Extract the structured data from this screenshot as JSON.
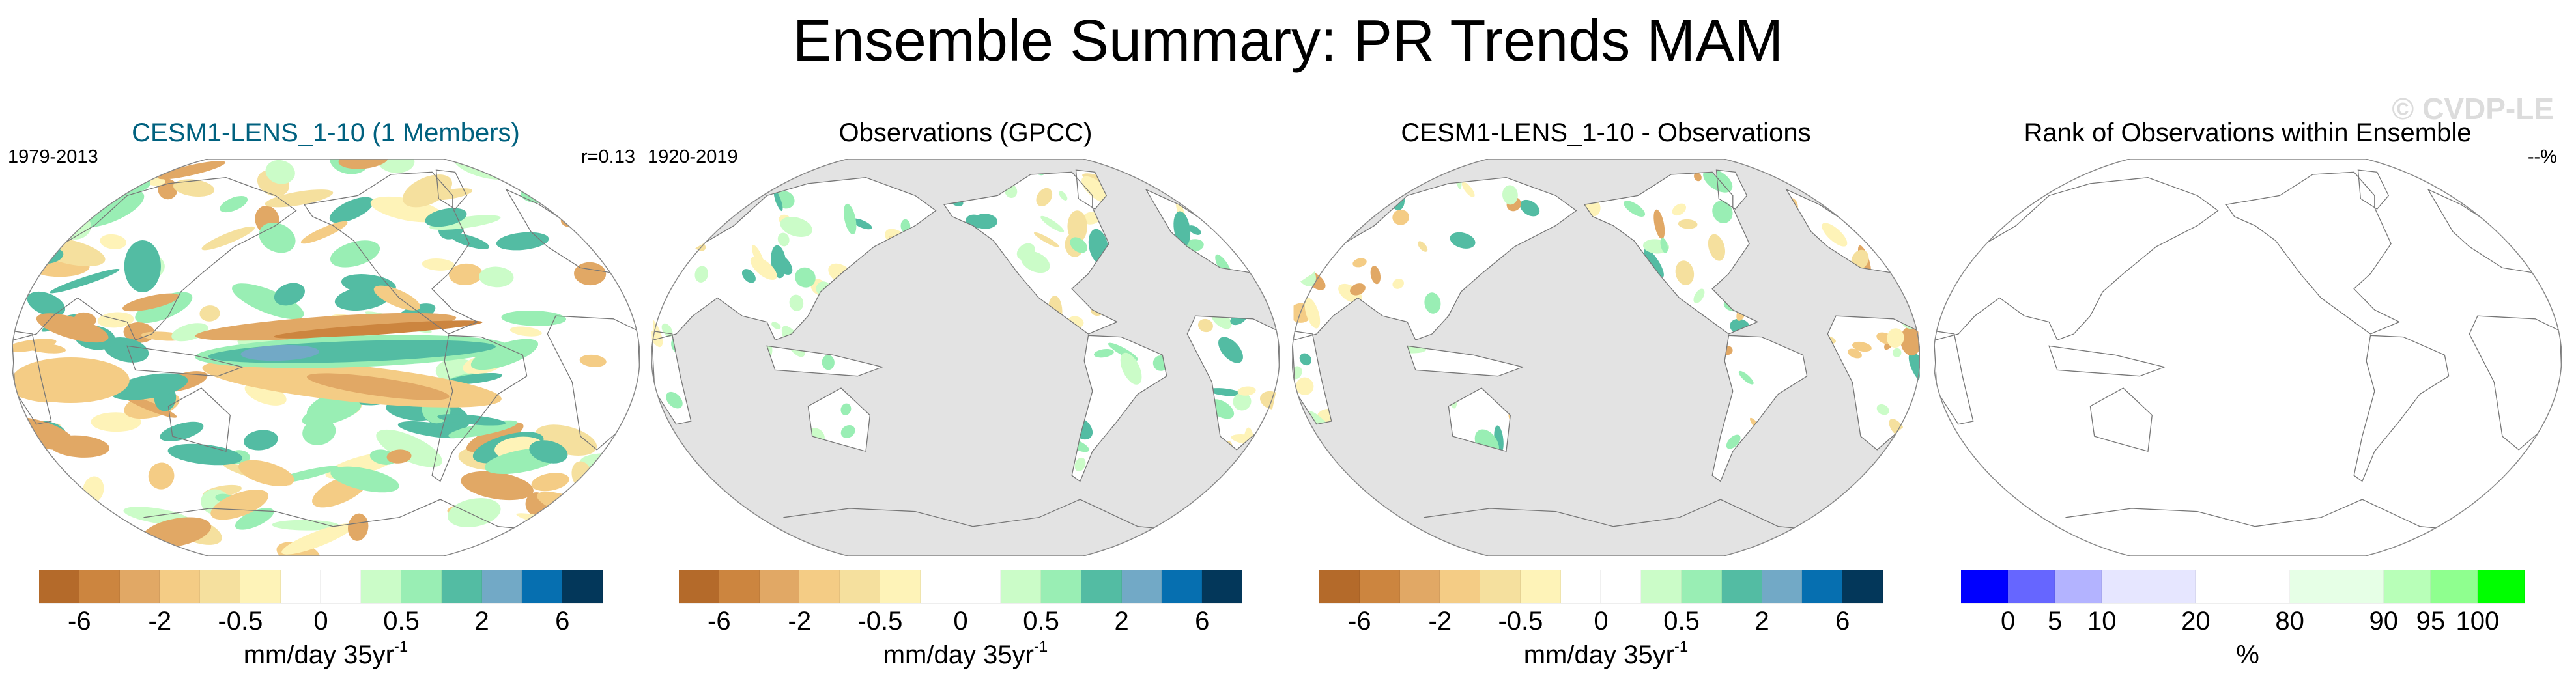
{
  "title": "Ensemble Summary: PR Trends MAM",
  "watermark": "© CVDP-LE",
  "panels": [
    {
      "title": "CESM1-LENS_1-10 (1 Members)",
      "title_color": "#00617f",
      "left_label": "1979-2013",
      "right_label": "r=0.13",
      "map_style": "model",
      "colorbar": {
        "ticks": [
          "-6",
          "-2",
          "-0.5",
          "0",
          "0.5",
          "2",
          "6"
        ],
        "unit": "mm/day 35yr",
        "unit_sup": "-1",
        "colors": [
          "#b46a2a",
          "#cc853f",
          "#e1a865",
          "#f4cc85",
          "#f5e09e",
          "#fef3b8",
          "#ffffff",
          "#ffffff",
          "#cbfcc8",
          "#99eeb4",
          "#53bca3",
          "#72a9c6",
          "#066fb0",
          "#03375a"
        ]
      }
    },
    {
      "title": "Observations (GPCC)",
      "title_color": "#000000",
      "left_label": "1920-2019",
      "right_label": "",
      "map_style": "obs",
      "colorbar": {
        "ticks": [
          "-6",
          "-2",
          "-0.5",
          "0",
          "0.5",
          "2",
          "6"
        ],
        "unit": "mm/day 35yr",
        "unit_sup": "-1",
        "colors": [
          "#b46a2a",
          "#cc853f",
          "#e1a865",
          "#f4cc85",
          "#f5e09e",
          "#fef3b8",
          "#ffffff",
          "#ffffff",
          "#cbfcc8",
          "#99eeb4",
          "#53bca3",
          "#72a9c6",
          "#066fb0",
          "#03375a"
        ]
      }
    },
    {
      "title": "CESM1-LENS_1-10 - Observations",
      "title_color": "#000000",
      "left_label": "",
      "right_label": "",
      "map_style": "diff",
      "colorbar": {
        "ticks": [
          "-6",
          "-2",
          "-0.5",
          "0",
          "0.5",
          "2",
          "6"
        ],
        "unit": "mm/day 35yr",
        "unit_sup": "-1",
        "colors": [
          "#b46a2a",
          "#cc853f",
          "#e1a865",
          "#f4cc85",
          "#f5e09e",
          "#fef3b8",
          "#ffffff",
          "#ffffff",
          "#cbfcc8",
          "#99eeb4",
          "#53bca3",
          "#72a9c6",
          "#066fb0",
          "#03375a"
        ]
      }
    },
    {
      "title": "Rank of Observations within Ensemble",
      "title_color": "#000000",
      "left_label": "",
      "right_label": "--%",
      "map_style": "rank",
      "colorbar": {
        "ticks": [
          "0",
          "5",
          "10",
          "20",
          "80",
          "90",
          "95",
          "100"
        ],
        "unit": "%",
        "unit_sup": "",
        "colors": [
          "#0000ff",
          "#6666ff",
          "#b3b3ff",
          "#e6e6ff",
          "#ffffff",
          "#e6ffe6",
          "#b8ffb8",
          "#8fff8f",
          "#00ff00"
        ]
      }
    }
  ],
  "chart_data": {
    "type": "heatmap",
    "title": "Ensemble Summary: PR Trends MAM",
    "maps": [
      {
        "title": "CESM1-LENS_1-10 (1 Members)",
        "period": "1979-2013",
        "pattern_correlation": 0.13,
        "units": "mm/day 35yr-1"
      },
      {
        "title": "Observations (GPCC)",
        "period": "1920-2019",
        "units": "mm/day 35yr-1"
      },
      {
        "title": "CESM1-LENS_1-10 - Observations",
        "units": "mm/day 35yr-1"
      },
      {
        "title": "Rank of Observations within Ensemble",
        "summary": "--%",
        "units": "%"
      }
    ],
    "trend_levels": [
      -6,
      -4,
      -2,
      -1,
      -0.5,
      -0.2,
      0,
      0.2,
      0.5,
      1,
      2,
      4,
      6
    ],
    "rank_levels": [
      0,
      5,
      10,
      20,
      80,
      90,
      95,
      100
    ]
  }
}
